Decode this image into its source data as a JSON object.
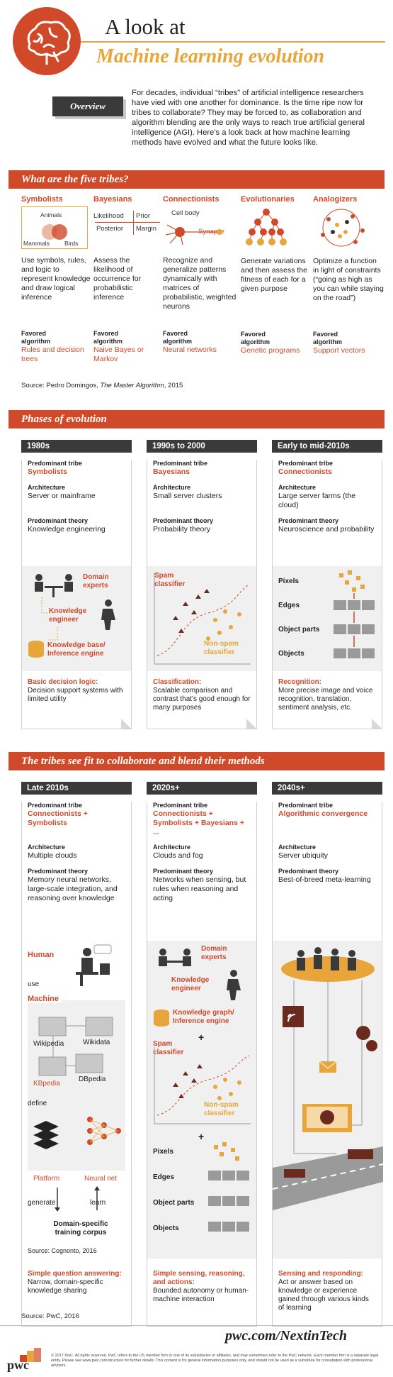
{
  "header": {
    "title_line1": "A look at",
    "title_line2": "Machine learning evolution",
    "overview_label": "Overview",
    "overview_text": "For decades, individual “tribes” of artificial intelligence researchers have vied with one another for dominance. Is the time ripe now for tribes to collaborate? They may be forced to, as collaboration and algorithm blending are the only ways to reach true artificial general intelligence (AGI). Here’s a look back at how machine learning methods have evolved and what the future looks like."
  },
  "tribes_section": {
    "banner": "What are the five tribes?",
    "favored_label": "Favored algorithm",
    "tribes": [
      {
        "name": "Symbolists",
        "desc": "Use symbols, rules, and logic to represent knowledge and draw logical inference",
        "algo": "Rules and decision trees",
        "diagram": [
          "Animals",
          "Mammals",
          "Birds"
        ]
      },
      {
        "name": "Bayesians",
        "desc": "Assess the likelihood of occurrence for probabilistic inference",
        "algo": "Naive Bayes or Markov",
        "diagram": [
          "Likelihood",
          "Prior",
          "Posterior",
          "Margin"
        ]
      },
      {
        "name": "Connectionists",
        "desc": "Recognize and generalize patterns dynamically with matrices of probabilistic, weighted neurons",
        "algo": "Neural networks",
        "diagram": [
          "Cell body",
          "Synapse"
        ]
      },
      {
        "name": "Evolutionaries",
        "desc": "Generate variations and then assess the fitness of each for a given purpose",
        "algo": "Genetic programs"
      },
      {
        "name": "Analogizers",
        "desc": "Optimize a function in light of constraints (“going as high as you can while staying on the road”)",
        "algo": "Support vectors"
      }
    ],
    "source_prefix": "Source: Pedro Domingos, ",
    "source_title": "The Master Algorithm",
    "source_suffix": ", 2015"
  },
  "labels": {
    "tribe": "Predominant tribe",
    "arch": "Architecture",
    "theory": "Predominant theory"
  },
  "phases_section": {
    "banner": "Phases of evolution",
    "columns": [
      {
        "era": "1980s",
        "tribe": "Symbolists",
        "arch": "Server or mainframe",
        "theory": "Knowledge engineering",
        "illus": [
          "Domain experts",
          "Knowledge engineer",
          "Knowledge base/ Inference engine"
        ],
        "cap_bold": "Basic decision logic:",
        "cap": "Decision support systems with limited utility"
      },
      {
        "era": "1990s to 2000",
        "tribe": "Bayesians",
        "arch": "Small server clusters",
        "theory": "Probability theory",
        "illus": [
          "Spam classifier",
          "Non-spam classifier"
        ],
        "cap_bold": "Classification:",
        "cap": "Scalable comparison and contrast that's good enough for many purposes"
      },
      {
        "era": "Early to mid-2010s",
        "tribe": "Connectionists",
        "arch": "Large server farms (the cloud)",
        "theory": "Neuroscience and probability",
        "illus": [
          "Pixels",
          "Edges",
          "Object parts",
          "Objects"
        ],
        "cap_bold": "Recognition:",
        "cap": "More precise image and voice recognition, translation, sentiment analysis, etc."
      }
    ]
  },
  "collab_section": {
    "banner": "The tribes see fit to collaborate and blend their methods",
    "columns": [
      {
        "era": "Late 2010s",
        "tribe": "Connectionists + Symbolists",
        "arch": "Multiple clouds",
        "theory": "Memory neural networks, large-scale integration, and reasoning over knowledge",
        "illus": [
          "Human",
          "use",
          "Machine",
          "Wikipedia",
          "Wikidata",
          "KBpedia",
          "DBpedia",
          "define",
          "Platform",
          "Neural net",
          "generate",
          "learn",
          "Domain-specific training corpus"
        ],
        "source": "Source: Cognonto, 2016",
        "cap_bold": "Simple question answering:",
        "cap": "Narrow, domain-specific knowledge sharing"
      },
      {
        "era": "2020s+",
        "tribe": "Connectionists + Symbolists + Bayesians + ...",
        "arch": "Clouds and fog",
        "theory": "Networks when sensing, but rules when reasoning and acting",
        "illus": [
          "Domain experts",
          "Knowledge engineer",
          "Knowledge graph/ Inference engine",
          "Spam classifier",
          "Non-spam classifier",
          "Pixels",
          "Edges",
          "Object parts",
          "Objects"
        ],
        "cap_bold": "Simple sensing, reasoning, and actions:",
        "cap": "Bounded autonomy or human-machine interaction"
      },
      {
        "era": "2040s+",
        "tribe": "Algorithmic convergence",
        "arch": "Server ubiquity",
        "theory": "Best-of-breed meta-learning",
        "cap_bold": "Sensing and responding:",
        "cap": "Act or answer based on knowledge or experience gained through various kinds of learning"
      }
    ]
  },
  "footer": {
    "source": "Source: PwC, 2016",
    "url": "pwc.com/NextinTech",
    "logo": "pwc",
    "legal": "© 2017 PwC. All rights reserved. PwC refers to the US member firm or one of its subsidiaries or affiliates, and may sometimes refer to the PwC network. Each member firm is a separate legal entity. Please see www.pwc.com/structure for further details. This content is for general information purposes only, and should not be used as a substitute for consultation with professional advisors."
  },
  "colors": {
    "accent": "#d04a2a",
    "orange": "#e8a53a",
    "dark": "#3a3a3a"
  }
}
